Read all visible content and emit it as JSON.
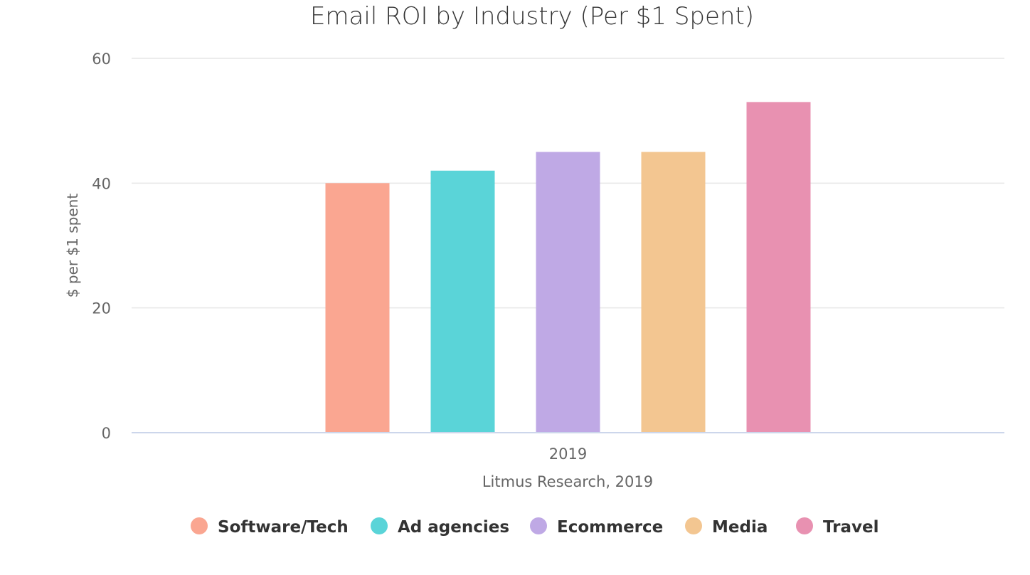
{
  "chart_data": {
    "type": "bar",
    "title": "Email ROI by Industry (Per $1 Spent)",
    "xlabel": "Litmus Research, 2019",
    "ylabel": "$ per $1 spent",
    "categories": [
      "2019"
    ],
    "ylim": [
      0,
      60
    ],
    "yticks": [
      0,
      20,
      40,
      60
    ],
    "ytick_labels": [
      "0",
      "20",
      "40",
      "60"
    ],
    "grid": true,
    "legend_position": "bottom",
    "series": [
      {
        "name": "Software/Tech",
        "values": [
          40
        ],
        "color": "#faa691"
      },
      {
        "name": "Ad agencies",
        "values": [
          42
        ],
        "color": "#5ad4d8"
      },
      {
        "name": "Ecommerce",
        "values": [
          45
        ],
        "color": "#bfa9e5"
      },
      {
        "name": "Media",
        "values": [
          45
        ],
        "color": "#f3c691"
      },
      {
        "name": "Travel",
        "values": [
          53
        ],
        "color": "#e891b1"
      }
    ]
  }
}
